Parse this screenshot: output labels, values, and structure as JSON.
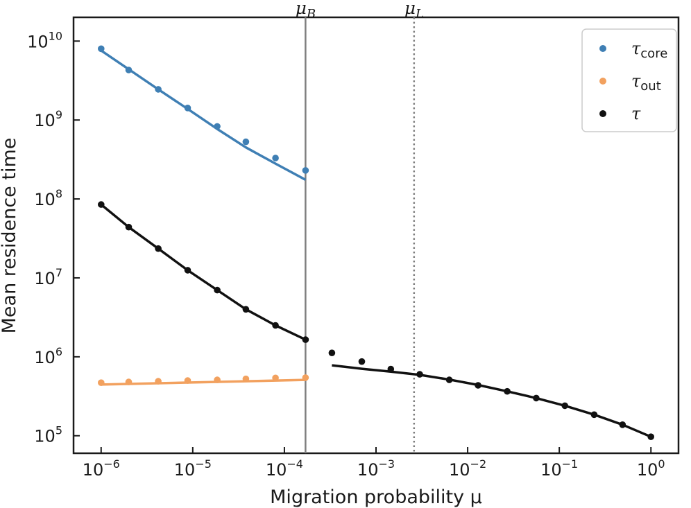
{
  "chart_data": {
    "type": "scatter",
    "xscale": "log",
    "yscale": "log",
    "xlim": [
      5e-07,
      2
    ],
    "ylim": [
      60000,
      20000000000
    ],
    "xlabel": "Migration probability μ",
    "ylabel": "Mean residence time",
    "x_ticks": [
      {
        "value": 1e-06,
        "base": "10",
        "exp": "−6"
      },
      {
        "value": 1e-05,
        "base": "10",
        "exp": "−5"
      },
      {
        "value": 0.0001,
        "base": "10",
        "exp": "−4"
      },
      {
        "value": 0.001,
        "base": "10",
        "exp": "−3"
      },
      {
        "value": 0.01,
        "base": "10",
        "exp": "−2"
      },
      {
        "value": 0.1,
        "base": "10",
        "exp": "−1"
      },
      {
        "value": 1,
        "base": "10",
        "exp": "0"
      }
    ],
    "y_ticks": [
      {
        "value": 100000,
        "base": "10",
        "exp": "5"
      },
      {
        "value": 1000000,
        "base": "10",
        "exp": "6"
      },
      {
        "value": 10000000,
        "base": "10",
        "exp": "7"
      },
      {
        "value": 100000000,
        "base": "10",
        "exp": "8"
      },
      {
        "value": 1000000000,
        "base": "10",
        "exp": "9"
      },
      {
        "value": 10000000000,
        "base": "10",
        "exp": "10"
      }
    ],
    "vertical_lines": [
      {
        "name": "mu-b",
        "x": 0.00017,
        "style": "solid",
        "color": "#7f7f7f",
        "label": "μ",
        "sub": "B"
      },
      {
        "name": "mu-l",
        "x": 0.0026,
        "style": "dotted",
        "color": "#7f7f7f",
        "label": "μ",
        "sub": "L"
      }
    ],
    "series": [
      {
        "name": "tau-core",
        "color": "#3f7fb4",
        "legend": "τ",
        "legend_sub": "core",
        "x": [
          1e-06,
          2e-06,
          4.2e-06,
          8.8e-06,
          1.85e-05,
          3.8e-05,
          8e-05,
          0.00017
        ],
        "y": [
          8000000000.0,
          4300000000.0,
          2450000000.0,
          1420000000.0,
          830000000.0,
          530000000.0,
          330000000.0,
          230000000.0
        ],
        "fit": {
          "x": [
            1e-06,
            2e-06,
            4.2e-06,
            8.8e-06,
            1.85e-05,
            3.8e-05,
            8e-05,
            0.00017
          ],
          "y": [
            7600000000.0,
            4400000000.0,
            2450000000.0,
            1380000000.0,
            770000000.0,
            450000000.0,
            280000000.0,
            175000000.0
          ]
        }
      },
      {
        "name": "tau-out",
        "color": "#f2a15f",
        "legend": "τ",
        "legend_sub": "out",
        "x": [
          1e-06,
          2e-06,
          4.2e-06,
          8.8e-06,
          1.85e-05,
          3.8e-05,
          8e-05,
          0.00017
        ],
        "y": [
          470000,
          480000,
          490000,
          500000,
          510000,
          525000,
          540000,
          545000
        ],
        "fit": {
          "x": [
            1e-06,
            0.00017
          ],
          "y": [
            445000,
            510000
          ]
        }
      },
      {
        "name": "tau-low",
        "color": "#111111",
        "legend": "τ",
        "legend_sub": "",
        "x": [
          1e-06,
          2e-06,
          4.2e-06,
          8.8e-06,
          1.85e-05,
          3.8e-05,
          8e-05,
          0.00017
        ],
        "y": [
          85000000.0,
          44000000.0,
          23500000.0,
          12500000.0,
          7000000.0,
          4000000.0,
          2500000.0,
          1650000.0
        ],
        "fit": {
          "x": [
            1e-06,
            2e-06,
            4.2e-06,
            8.8e-06,
            1.85e-05,
            3.8e-05,
            8e-05,
            0.00017
          ],
          "y": [
            85000000.0,
            44000000.0,
            23500000.0,
            12500000.0,
            7000000.0,
            4000000.0,
            2500000.0,
            1650000.0
          ]
        }
      },
      {
        "name": "tau-high",
        "color": "#111111",
        "legend": "",
        "legend_sub": "",
        "x": [
          0.00033,
          0.0007,
          0.00145,
          0.003,
          0.0063,
          0.013,
          0.027,
          0.056,
          0.115,
          0.24,
          0.49,
          1
        ],
        "y": [
          1120000.0,
          870000,
          700000,
          600000,
          510000,
          435000,
          365000,
          300000,
          240000,
          185000,
          138000,
          97000
        ],
        "fit": {
          "x": [
            0.00033,
            0.0007,
            0.00145,
            0.003,
            0.0063,
            0.013,
            0.027,
            0.056,
            0.115,
            0.24,
            0.49,
            1
          ],
          "y": [
            780000,
            705000,
            650000,
            590000,
            515000,
            440000,
            365000,
            300000,
            240000,
            185000,
            138000,
            97000
          ]
        }
      }
    ],
    "legend": {
      "placement": "top-right",
      "entries": [
        {
          "series": "tau-core",
          "symbol": "τ",
          "sub": "core"
        },
        {
          "series": "tau-out",
          "symbol": "τ",
          "sub": "out"
        },
        {
          "series": "tau-low",
          "symbol": "τ",
          "sub": ""
        }
      ]
    }
  }
}
